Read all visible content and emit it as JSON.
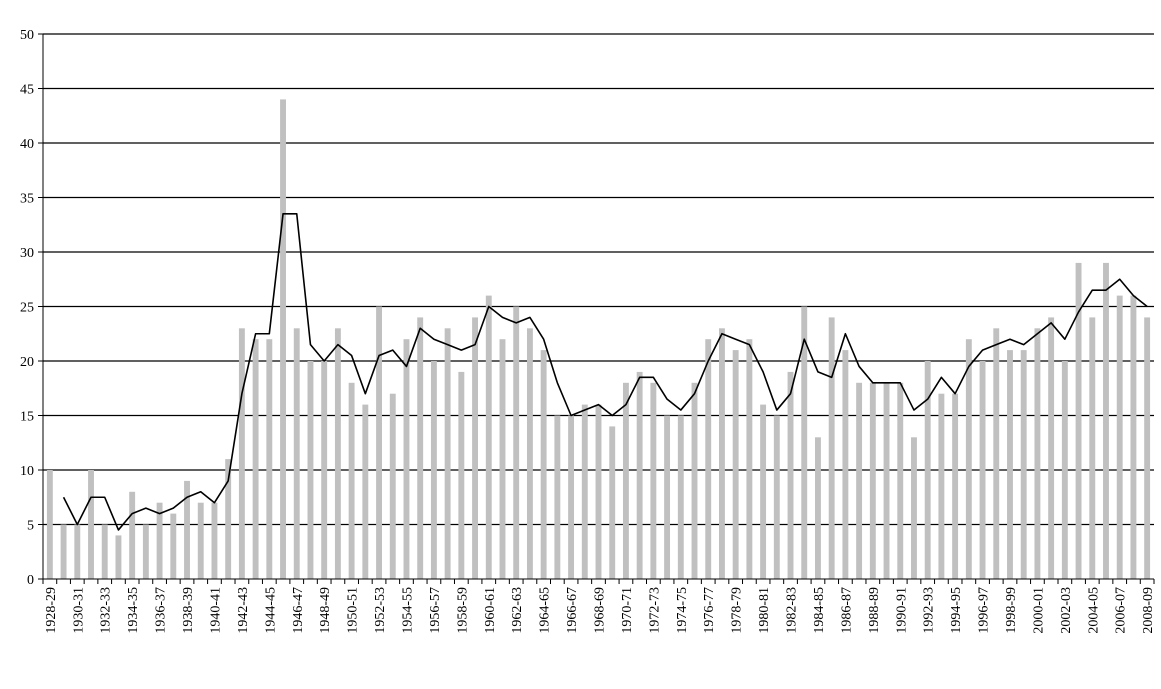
{
  "chart_data": {
    "type": "bar",
    "title": "",
    "xlabel": "",
    "ylabel": "",
    "ylim": [
      0,
      50
    ],
    "y_ticks": [
      0,
      5,
      10,
      15,
      20,
      25,
      30,
      35,
      40,
      45,
      50
    ],
    "grid": true,
    "legend": "none",
    "categories": [
      "1928-29",
      "1929-30",
      "1930-31",
      "1931-32",
      "1932-33",
      "1933-34",
      "1934-35",
      "1935-36",
      "1936-37",
      "1937-38",
      "1938-39",
      "1939-40",
      "1940-41",
      "1941-42",
      "1942-43",
      "1943-44",
      "1944-45",
      "1945-46",
      "1946-47",
      "1947-48",
      "1948-49",
      "1949-50",
      "1950-51",
      "1951-52",
      "1952-53",
      "1953-54",
      "1954-55",
      "1955-56",
      "1956-57",
      "1957-58",
      "1958-59",
      "1959-60",
      "1960-61",
      "1961-62",
      "1962-63",
      "1963-64",
      "1964-65",
      "1965-66",
      "1966-67",
      "1967-68",
      "1968-69",
      "1969-70",
      "1970-71",
      "1971-72",
      "1972-73",
      "1973-74",
      "1974-75",
      "1975-76",
      "1976-77",
      "1977-78",
      "1978-79",
      "1979-80",
      "1980-81",
      "1981-82",
      "1982-83",
      "1983-84",
      "1984-85",
      "1985-86",
      "1986-87",
      "1987-88",
      "1988-89",
      "1989-90",
      "1990-91",
      "1991-92",
      "1992-93",
      "1993-94",
      "1994-95",
      "1995-96",
      "1996-97",
      "1997-98",
      "1998-99",
      "1999-00",
      "2000-01",
      "2001-02",
      "2002-03",
      "2003-04",
      "2004-05",
      "2005-06",
      "2006-07",
      "2007-08",
      "2008-09"
    ],
    "x_tick_labels": [
      "1928-29",
      "1930-31",
      "1932-33",
      "1934-35",
      "1936-37",
      "1938-39",
      "1940-41",
      "1942-43",
      "1944-45",
      "1946-47",
      "1948-49",
      "1950-51",
      "1952-53",
      "1954-55",
      "1956-57",
      "1958-59",
      "1960-61",
      "1962-63",
      "1964-65",
      "1966-67",
      "1968-69",
      "1970-71",
      "1972-73",
      "1974-75",
      "1976-77",
      "1978-79",
      "1980-81",
      "1982-83",
      "1984-85",
      "1986-87",
      "1988-89",
      "1990-91",
      "1992-93",
      "1994-95",
      "1996-97",
      "1998-99",
      "2000-01",
      "2002-03",
      "2004-05",
      "2006-07",
      "2008-09"
    ],
    "series": [
      {
        "kind": "bar",
        "color": "#c0c0c0",
        "values": [
          10,
          5,
          5,
          10,
          5,
          4,
          8,
          5,
          7,
          6,
          9,
          7,
          7,
          11,
          23,
          22,
          22,
          44,
          23,
          20,
          20,
          23,
          18,
          16,
          25,
          17,
          22,
          24,
          20,
          23,
          19,
          24,
          26,
          22,
          25,
          23,
          21,
          15,
          15,
          16,
          16,
          14,
          18,
          19,
          18,
          15,
          15,
          18,
          22,
          23,
          21,
          22,
          16,
          15,
          19,
          25,
          13,
          24,
          21,
          18,
          18,
          18,
          18,
          13,
          20,
          17,
          17,
          22,
          20,
          23,
          21,
          21,
          23,
          24,
          20,
          29,
          24,
          29,
          26,
          26,
          24
        ]
      },
      {
        "kind": "line",
        "color": "#000000",
        "values": [
          null,
          7.5,
          5,
          7.5,
          7.5,
          4.5,
          6,
          6.5,
          6,
          6.5,
          7.5,
          8,
          7,
          9,
          17,
          22.5,
          22.5,
          33.5,
          33.5,
          21.5,
          20,
          21.5,
          20.5,
          17,
          20.5,
          21,
          19.5,
          23,
          22,
          21.5,
          21,
          21.5,
          25,
          24,
          23.5,
          24,
          22,
          18,
          15,
          15.5,
          16,
          15,
          16,
          18.5,
          18.5,
          16.5,
          15.5,
          17,
          20,
          22.5,
          22,
          21.5,
          19,
          15.5,
          17,
          22,
          19,
          18.5,
          22.5,
          19.5,
          18,
          18,
          18,
          15.5,
          16.5,
          18.5,
          17,
          19.5,
          21,
          21.5,
          22,
          21.5,
          22.5,
          23.5,
          22,
          24.5,
          26.5,
          26.5,
          27.5,
          26,
          25
        ]
      }
    ]
  }
}
